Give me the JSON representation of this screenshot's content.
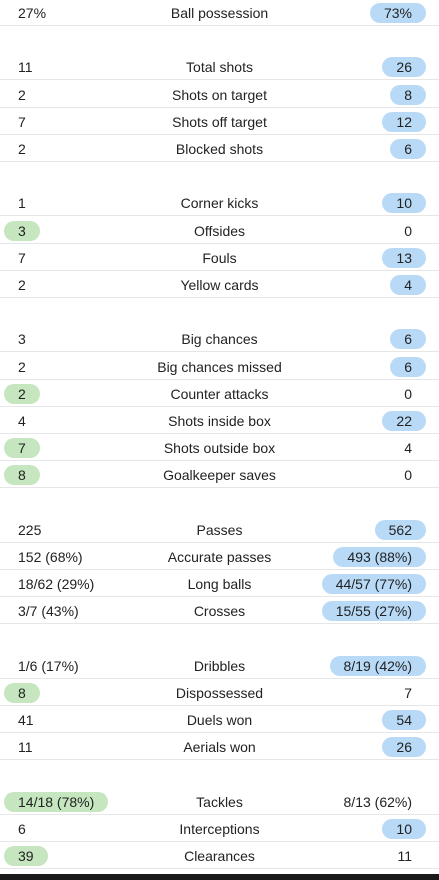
{
  "colors": {
    "home_highlight": "#c6e6bf",
    "away_highlight": "#b9daf7",
    "separator": "#e4e6e8"
  },
  "groups": [
    {
      "rows": [
        {
          "label": "Ball possession",
          "home": "27%",
          "away": "73%",
          "winner": "away"
        }
      ]
    },
    {
      "rows": [
        {
          "label": "Total shots",
          "home": "11",
          "away": "26",
          "winner": "away"
        },
        {
          "label": "Shots on target",
          "home": "2",
          "away": "8",
          "winner": "away"
        },
        {
          "label": "Shots off target",
          "home": "7",
          "away": "12",
          "winner": "away"
        },
        {
          "label": "Blocked shots",
          "home": "2",
          "away": "6",
          "winner": "away"
        }
      ]
    },
    {
      "rows": [
        {
          "label": "Corner kicks",
          "home": "1",
          "away": "10",
          "winner": "away"
        },
        {
          "label": "Offsides",
          "home": "3",
          "away": "0",
          "winner": "home"
        },
        {
          "label": "Fouls",
          "home": "7",
          "away": "13",
          "winner": "away"
        },
        {
          "label": "Yellow cards",
          "home": "2",
          "away": "4",
          "winner": "away"
        }
      ]
    },
    {
      "rows": [
        {
          "label": "Big chances",
          "home": "3",
          "away": "6",
          "winner": "away"
        },
        {
          "label": "Big chances missed",
          "home": "2",
          "away": "6",
          "winner": "away"
        },
        {
          "label": "Counter attacks",
          "home": "2",
          "away": "0",
          "winner": "home"
        },
        {
          "label": "Shots inside box",
          "home": "4",
          "away": "22",
          "winner": "away"
        },
        {
          "label": "Shots outside box",
          "home": "7",
          "away": "4",
          "winner": "home"
        },
        {
          "label": "Goalkeeper saves",
          "home": "8",
          "away": "0",
          "winner": "home"
        }
      ]
    },
    {
      "rows": [
        {
          "label": "Passes",
          "home": "225",
          "away": "562",
          "winner": "away"
        },
        {
          "label": "Accurate passes",
          "home": "152 (68%)",
          "away": "493 (88%)",
          "winner": "away"
        },
        {
          "label": "Long balls",
          "home": "18/62 (29%)",
          "away": "44/57 (77%)",
          "winner": "away"
        },
        {
          "label": "Crosses",
          "home": "3/7 (43%)",
          "away": "15/55 (27%)",
          "winner": "away"
        }
      ]
    },
    {
      "rows": [
        {
          "label": "Dribbles",
          "home": "1/6 (17%)",
          "away": "8/19 (42%)",
          "winner": "away"
        },
        {
          "label": "Dispossessed",
          "home": "8",
          "away": "7",
          "winner": "home"
        },
        {
          "label": "Duels won",
          "home": "41",
          "away": "54",
          "winner": "away"
        },
        {
          "label": "Aerials won",
          "home": "11",
          "away": "26",
          "winner": "away"
        }
      ]
    },
    {
      "rows": [
        {
          "label": "Tackles",
          "home": "14/18 (78%)",
          "away": "8/13 (62%)",
          "winner": "home"
        },
        {
          "label": "Interceptions",
          "home": "6",
          "away": "10",
          "winner": "away"
        },
        {
          "label": "Clearances",
          "home": "39",
          "away": "11",
          "winner": "home"
        }
      ]
    }
  ]
}
